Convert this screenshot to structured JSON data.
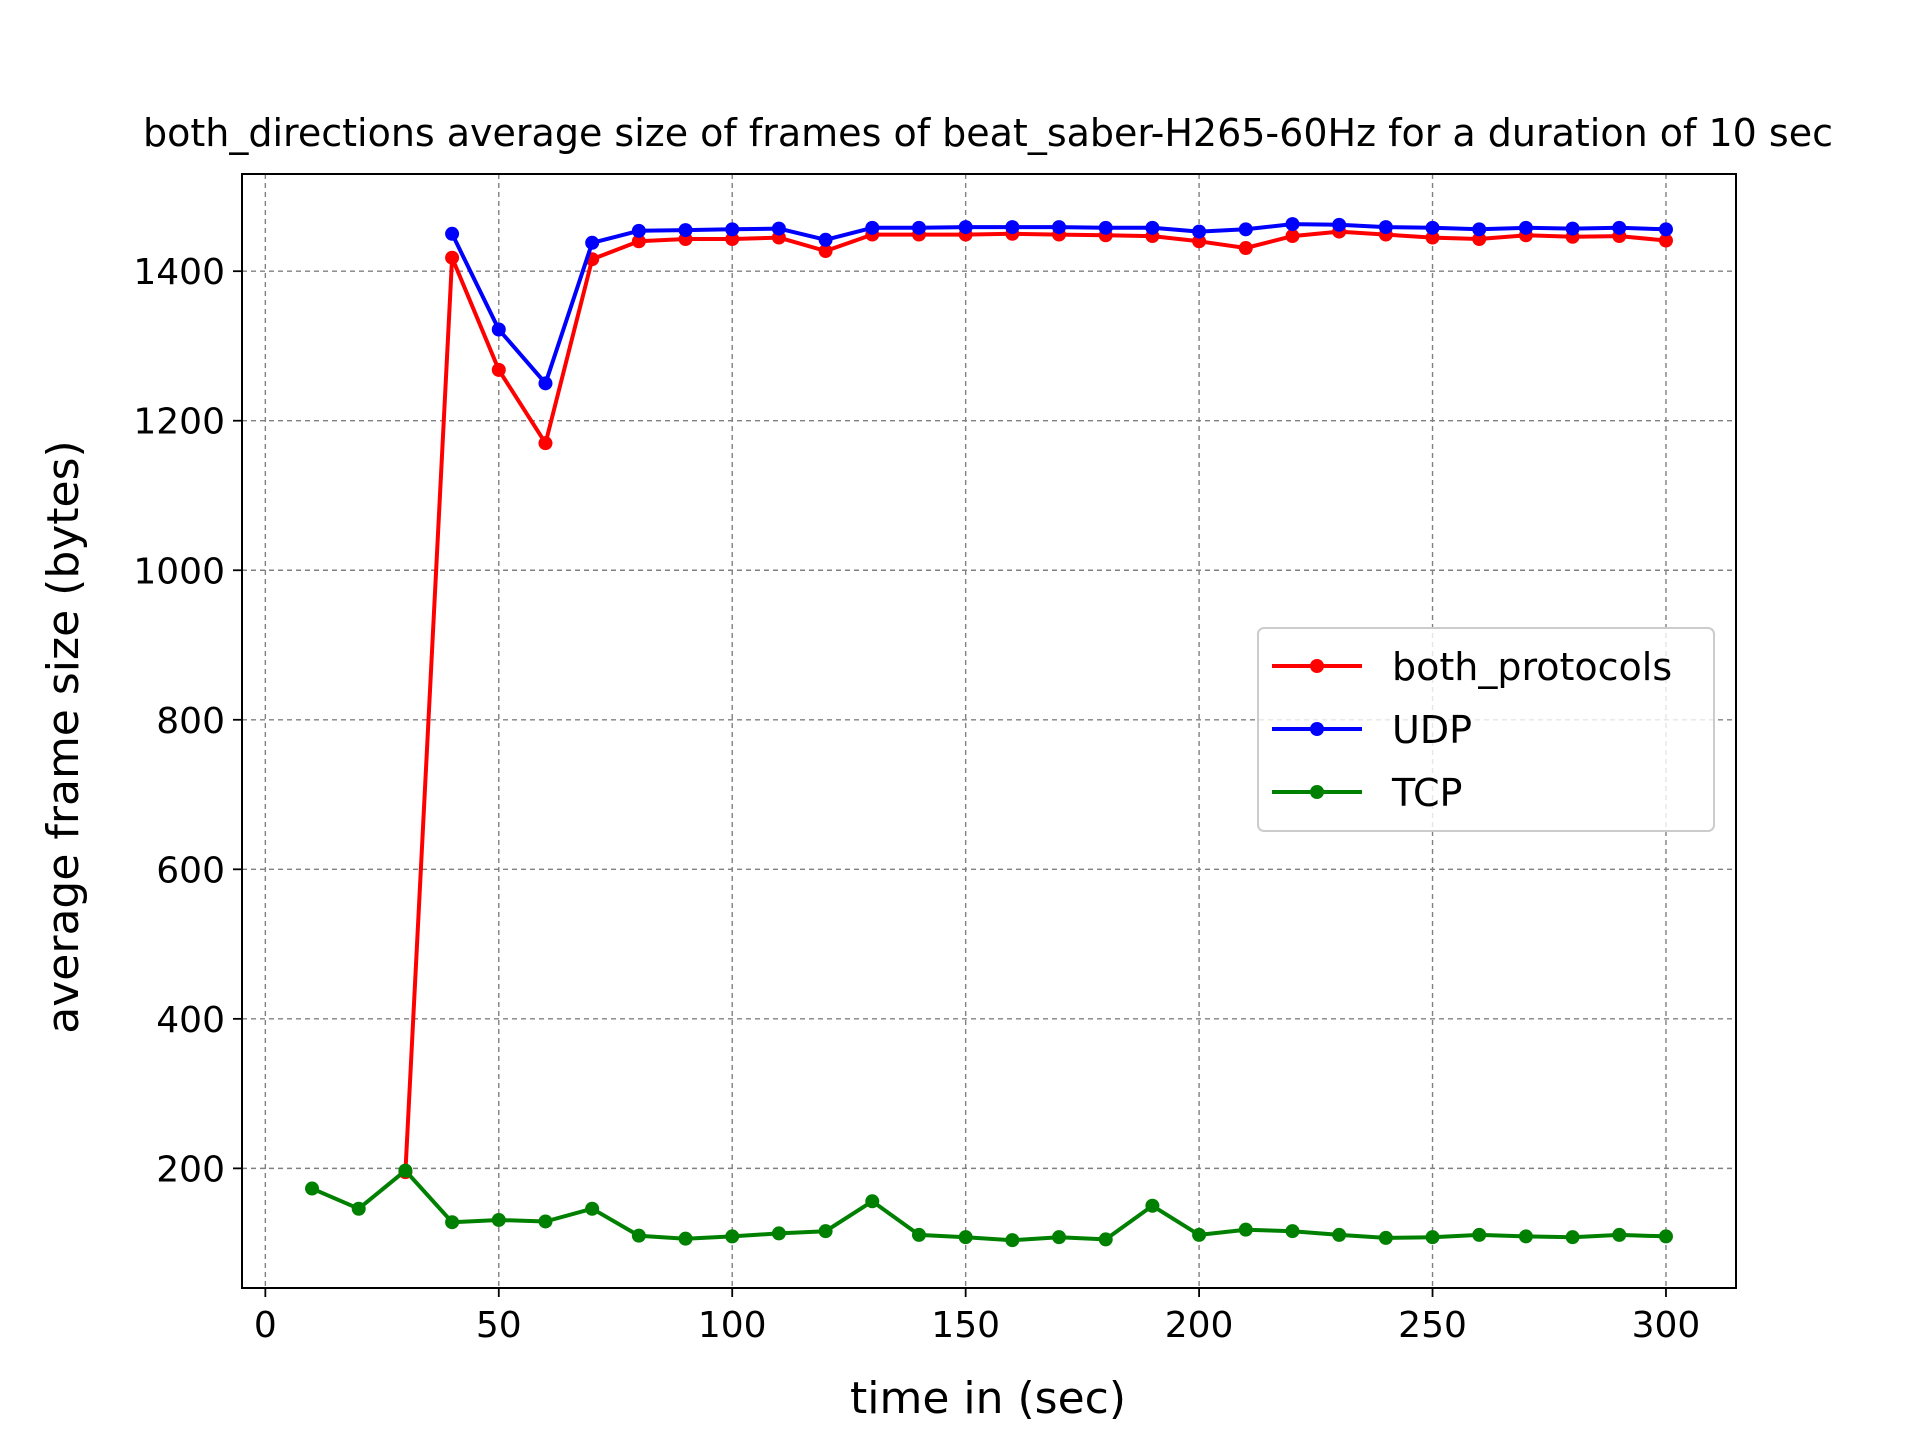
{
  "chart_data": {
    "type": "line",
    "title": "both_directions average size of frames of beat_saber-H265-60Hz for a duration of 10 sec",
    "xlabel": "time in (sec)",
    "ylabel": "average frame size (bytes)",
    "xlim": [
      -5,
      315
    ],
    "ylim": [
      40,
      1530
    ],
    "xticks": [
      0,
      50,
      100,
      150,
      200,
      250,
      300
    ],
    "yticks": [
      200,
      400,
      600,
      800,
      1000,
      1200,
      1400
    ],
    "grid": true,
    "legend_position": "center-right",
    "series": [
      {
        "name": "both_protocols",
        "color": "#ff0000",
        "points": [
          [
            30,
            195
          ],
          [
            40,
            1418
          ],
          [
            50,
            1268
          ],
          [
            60,
            1170
          ],
          [
            70,
            1416
          ],
          [
            80,
            1440
          ],
          [
            90,
            1443
          ],
          [
            100,
            1443
          ],
          [
            110,
            1445
          ],
          [
            120,
            1427
          ],
          [
            130,
            1449
          ],
          [
            140,
            1449
          ],
          [
            150,
            1449
          ],
          [
            160,
            1450
          ],
          [
            170,
            1449
          ],
          [
            180,
            1448
          ],
          [
            190,
            1447
          ],
          [
            200,
            1440
          ],
          [
            210,
            1431
          ],
          [
            220,
            1447
          ],
          [
            230,
            1453
          ],
          [
            240,
            1449
          ],
          [
            250,
            1445
          ],
          [
            260,
            1443
          ],
          [
            270,
            1448
          ],
          [
            280,
            1446
          ],
          [
            290,
            1447
          ],
          [
            300,
            1441
          ]
        ]
      },
      {
        "name": "UDP",
        "color": "#0000ff",
        "points": [
          [
            40,
            1450
          ],
          [
            50,
            1322
          ],
          [
            60,
            1250
          ],
          [
            70,
            1438
          ],
          [
            80,
            1454
          ],
          [
            90,
            1455
          ],
          [
            100,
            1456
          ],
          [
            110,
            1457
          ],
          [
            120,
            1442
          ],
          [
            130,
            1458
          ],
          [
            140,
            1458
          ],
          [
            150,
            1459
          ],
          [
            160,
            1459
          ],
          [
            170,
            1459
          ],
          [
            180,
            1458
          ],
          [
            190,
            1458
          ],
          [
            200,
            1453
          ],
          [
            210,
            1456
          ],
          [
            220,
            1463
          ],
          [
            230,
            1462
          ],
          [
            240,
            1459
          ],
          [
            250,
            1458
          ],
          [
            260,
            1456
          ],
          [
            270,
            1458
          ],
          [
            280,
            1457
          ],
          [
            290,
            1458
          ],
          [
            300,
            1456
          ]
        ]
      },
      {
        "name": "TCP",
        "color": "#008000",
        "points": [
          [
            10,
            173
          ],
          [
            20,
            146
          ],
          [
            30,
            197
          ],
          [
            40,
            128
          ],
          [
            50,
            131
          ],
          [
            60,
            129
          ],
          [
            70,
            146
          ],
          [
            80,
            110
          ],
          [
            90,
            106
          ],
          [
            100,
            109
          ],
          [
            110,
            113
          ],
          [
            120,
            116
          ],
          [
            130,
            156
          ],
          [
            140,
            111
          ],
          [
            150,
            108
          ],
          [
            160,
            104
          ],
          [
            170,
            108
          ],
          [
            180,
            105
          ],
          [
            190,
            150
          ],
          [
            200,
            111
          ],
          [
            210,
            118
          ],
          [
            220,
            116
          ],
          [
            230,
            111
          ],
          [
            240,
            107
          ],
          [
            250,
            108
          ],
          [
            260,
            111
          ],
          [
            270,
            109
          ],
          [
            280,
            108
          ],
          [
            290,
            111
          ],
          [
            300,
            109
          ]
        ]
      }
    ]
  }
}
